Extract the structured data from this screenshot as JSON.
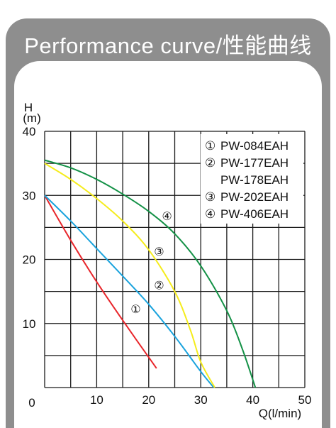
{
  "header": {
    "title": "Performance curve/性能曲线"
  },
  "chart_data": {
    "type": "line",
    "ylabel_top": "H",
    "ylabel_unit": "(m)",
    "xlabel": "Q(l/min)",
    "xlim": [
      0,
      50
    ],
    "ylim": [
      0,
      40
    ],
    "x_ticks": [
      "0",
      "10",
      "20",
      "30",
      "40",
      "50"
    ],
    "y_ticks": [
      "10",
      "20",
      "30",
      "40"
    ],
    "grid": true,
    "legend_position": "top-right",
    "legend": [
      {
        "marker": "①",
        "text": "PW-084EAH"
      },
      {
        "marker": "②",
        "text": "PW-177EAH"
      },
      {
        "marker": "",
        "text": "PW-178EAH"
      },
      {
        "marker": "③",
        "text": "PW-202EAH"
      },
      {
        "marker": "④",
        "text": "PW-406EAH"
      }
    ],
    "series": [
      {
        "name": "①",
        "color": "#e8262b",
        "points": [
          [
            0,
            30
          ],
          [
            5,
            23
          ],
          [
            10,
            16.5
          ],
          [
            15,
            10.5
          ],
          [
            21.5,
            3
          ]
        ],
        "label_at": [
          17.5,
          12.3
        ]
      },
      {
        "name": "②",
        "color": "#1aa3dd",
        "points": [
          [
            0,
            30
          ],
          [
            5,
            26
          ],
          [
            10,
            21.7
          ],
          [
            15,
            17.4
          ],
          [
            20,
            13
          ],
          [
            25,
            8
          ],
          [
            30,
            2.5
          ],
          [
            32.5,
            0
          ]
        ],
        "label_at": [
          22,
          16
        ]
      },
      {
        "name": "③",
        "color": "#f5ec1c",
        "points": [
          [
            0,
            35
          ],
          [
            5,
            32.5
          ],
          [
            10,
            29.5
          ],
          [
            15,
            26
          ],
          [
            20,
            21.5
          ],
          [
            25,
            15
          ],
          [
            28,
            9
          ],
          [
            30,
            4
          ],
          [
            32.7,
            0
          ]
        ],
        "label_at": [
          22,
          21.3
        ]
      },
      {
        "name": "④",
        "color": "#139146",
        "points": [
          [
            0,
            35.5
          ],
          [
            5,
            34.3
          ],
          [
            10,
            32.5
          ],
          [
            15,
            30.2
          ],
          [
            20,
            27.5
          ],
          [
            25,
            24
          ],
          [
            30,
            19
          ],
          [
            35,
            12
          ],
          [
            38,
            6
          ],
          [
            40.5,
            0
          ]
        ],
        "label_at": [
          23.5,
          26.8
        ]
      }
    ]
  }
}
